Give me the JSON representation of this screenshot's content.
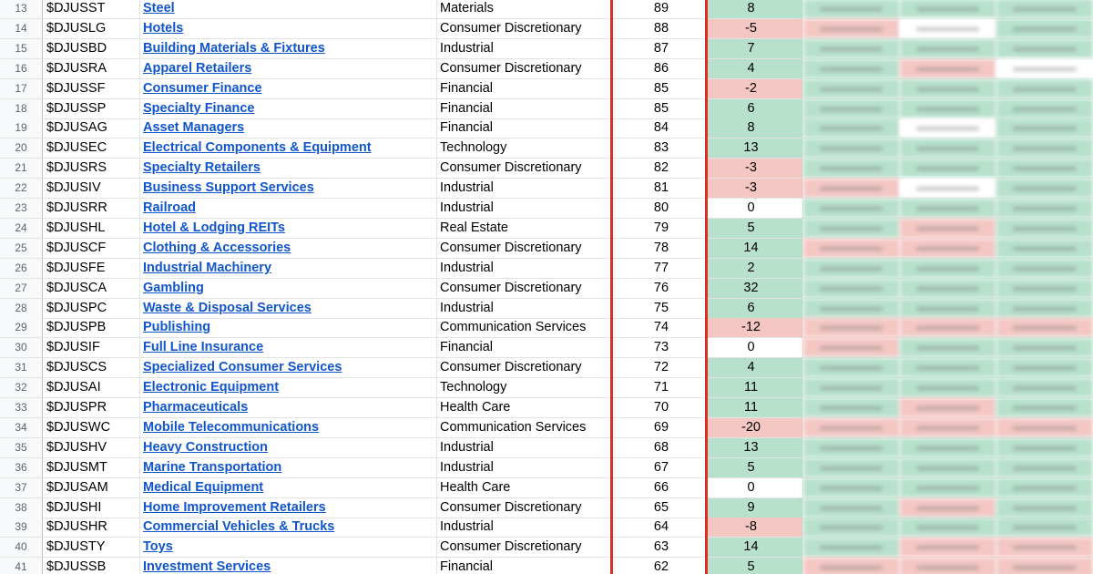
{
  "rows": [
    {
      "n": "13",
      "ticker": "$DJUSST",
      "name": "Steel",
      "sector": "Materials",
      "rank": "89",
      "chg": "8",
      "s": [
        "pos",
        "pos",
        "pos",
        "pos"
      ]
    },
    {
      "n": "14",
      "ticker": "$DJUSLG",
      "name": "Hotels",
      "sector": "Consumer Discretionary",
      "rank": "88",
      "chg": "-5",
      "s": [
        "neg",
        "neg",
        "zero",
        "pos"
      ]
    },
    {
      "n": "15",
      "ticker": "$DJUSBD",
      "name": "Building Materials & Fixtures",
      "sector": "Industrial",
      "rank": "87",
      "chg": "7",
      "s": [
        "pos",
        "pos",
        "pos",
        "pos"
      ]
    },
    {
      "n": "16",
      "ticker": "$DJUSRA",
      "name": "Apparel Retailers",
      "sector": "Consumer Discretionary",
      "rank": "86",
      "chg": "4",
      "s": [
        "pos",
        "pos",
        "neg",
        "zero"
      ]
    },
    {
      "n": "17",
      "ticker": "$DJUSSF",
      "name": "Consumer Finance",
      "sector": "Financial",
      "rank": "85",
      "chg": "-2",
      "s": [
        "neg",
        "pos",
        "pos",
        "pos"
      ]
    },
    {
      "n": "18",
      "ticker": "$DJUSSP",
      "name": "Specialty Finance",
      "sector": "Financial",
      "rank": "85",
      "chg": "6",
      "s": [
        "pos",
        "pos",
        "pos",
        "pos"
      ]
    },
    {
      "n": "19",
      "ticker": "$DJUSAG",
      "name": "Asset Managers",
      "sector": "Financial",
      "rank": "84",
      "chg": "8",
      "s": [
        "pos",
        "pos",
        "zero",
        "pos"
      ]
    },
    {
      "n": "20",
      "ticker": "$DJUSEC",
      "name": "Electrical Components & Equipment",
      "sector": "Technology",
      "rank": "83",
      "chg": "13",
      "s": [
        "pos",
        "pos",
        "pos",
        "pos"
      ]
    },
    {
      "n": "21",
      "ticker": "$DJUSRS",
      "name": "Specialty Retailers",
      "sector": "Consumer Discretionary",
      "rank": "82",
      "chg": "-3",
      "s": [
        "neg",
        "pos",
        "pos",
        "pos"
      ]
    },
    {
      "n": "22",
      "ticker": "$DJUSIV",
      "name": "Business Support Services",
      "sector": "Industrial",
      "rank": "81",
      "chg": "-3",
      "s": [
        "neg",
        "neg",
        "zero",
        "pos"
      ]
    },
    {
      "n": "23",
      "ticker": "$DJUSRR",
      "name": "Railroad",
      "sector": "Industrial",
      "rank": "80",
      "chg": "0",
      "s": [
        "zero",
        "pos",
        "pos",
        "pos"
      ]
    },
    {
      "n": "24",
      "ticker": "$DJUSHL",
      "name": "Hotel & Lodging REITs",
      "sector": "Real Estate",
      "rank": "79",
      "chg": "5",
      "s": [
        "pos",
        "pos",
        "neg",
        "pos"
      ]
    },
    {
      "n": "25",
      "ticker": "$DJUSCF",
      "name": "Clothing & Accessories",
      "sector": "Consumer Discretionary",
      "rank": "78",
      "chg": "14",
      "s": [
        "pos",
        "neg",
        "neg",
        "pos"
      ]
    },
    {
      "n": "26",
      "ticker": "$DJUSFE",
      "name": "Industrial Machinery",
      "sector": "Industrial",
      "rank": "77",
      "chg": "2",
      "s": [
        "pos",
        "pos",
        "pos",
        "pos"
      ]
    },
    {
      "n": "27",
      "ticker": "$DJUSCA",
      "name": "Gambling",
      "sector": "Consumer Discretionary",
      "rank": "76",
      "chg": "32",
      "s": [
        "pos",
        "pos",
        "pos",
        "pos"
      ]
    },
    {
      "n": "28",
      "ticker": "$DJUSPC",
      "name": "Waste & Disposal Services",
      "sector": "Industrial",
      "rank": "75",
      "chg": "6",
      "s": [
        "pos",
        "pos",
        "pos",
        "pos"
      ]
    },
    {
      "n": "29",
      "ticker": "$DJUSPB",
      "name": "Publishing",
      "sector": "Communication Services",
      "rank": "74",
      "chg": "-12",
      "s": [
        "neg",
        "neg",
        "neg",
        "neg"
      ]
    },
    {
      "n": "30",
      "ticker": "$DJUSIF",
      "name": "Full Line Insurance",
      "sector": "Financial",
      "rank": "73",
      "chg": "0",
      "s": [
        "zero",
        "neg",
        "pos",
        "pos"
      ]
    },
    {
      "n": "31",
      "ticker": "$DJUSCS",
      "name": "Specialized Consumer Services",
      "sector": "Consumer Discretionary",
      "rank": "72",
      "chg": "4",
      "s": [
        "pos",
        "pos",
        "pos",
        "pos"
      ]
    },
    {
      "n": "32",
      "ticker": "$DJUSAI",
      "name": "Electronic Equipment",
      "sector": "Technology",
      "rank": "71",
      "chg": "11",
      "s": [
        "pos",
        "pos",
        "pos",
        "pos"
      ]
    },
    {
      "n": "33",
      "ticker": "$DJUSPR",
      "name": "Pharmaceuticals",
      "sector": "Health Care",
      "rank": "70",
      "chg": "11",
      "s": [
        "pos",
        "pos",
        "neg",
        "pos"
      ]
    },
    {
      "n": "34",
      "ticker": "$DJUSWC",
      "name": "Mobile Telecommunications",
      "sector": "Communication Services",
      "rank": "69",
      "chg": "-20",
      "s": [
        "neg",
        "neg",
        "neg",
        "neg"
      ]
    },
    {
      "n": "35",
      "ticker": "$DJUSHV",
      "name": "Heavy Construction",
      "sector": "Industrial",
      "rank": "68",
      "chg": "13",
      "s": [
        "pos",
        "pos",
        "pos",
        "pos"
      ]
    },
    {
      "n": "36",
      "ticker": "$DJUSMT",
      "name": "Marine Transportation",
      "sector": "Industrial",
      "rank": "67",
      "chg": "5",
      "s": [
        "pos",
        "pos",
        "pos",
        "pos"
      ]
    },
    {
      "n": "37",
      "ticker": "$DJUSAM",
      "name": "Medical Equipment",
      "sector": "Health Care",
      "rank": "66",
      "chg": "0",
      "s": [
        "zero",
        "pos",
        "pos",
        "pos"
      ]
    },
    {
      "n": "38",
      "ticker": "$DJUSHI",
      "name": "Home Improvement Retailers",
      "sector": "Consumer Discretionary",
      "rank": "65",
      "chg": "9",
      "s": [
        "pos",
        "pos",
        "neg",
        "pos"
      ]
    },
    {
      "n": "39",
      "ticker": "$DJUSHR",
      "name": "Commercial Vehicles & Trucks",
      "sector": "Industrial",
      "rank": "64",
      "chg": "-8",
      "s": [
        "neg",
        "pos",
        "pos",
        "pos"
      ]
    },
    {
      "n": "40",
      "ticker": "$DJUSTY",
      "name": "Toys",
      "sector": "Consumer Discretionary",
      "rank": "63",
      "chg": "14",
      "s": [
        "pos",
        "pos",
        "neg",
        "neg"
      ]
    },
    {
      "n": "41",
      "ticker": "$DJUSSB",
      "name": "Investment Services",
      "sector": "Financial",
      "rank": "62",
      "chg": "5",
      "s": [
        "pos",
        "neg",
        "neg",
        "neg"
      ]
    }
  ],
  "colors": {
    "positive": "#b7e1cd",
    "negative": "#f4c7c3",
    "neutral": "#ffffff",
    "divider": "#d93025",
    "link": "#1155cc"
  }
}
